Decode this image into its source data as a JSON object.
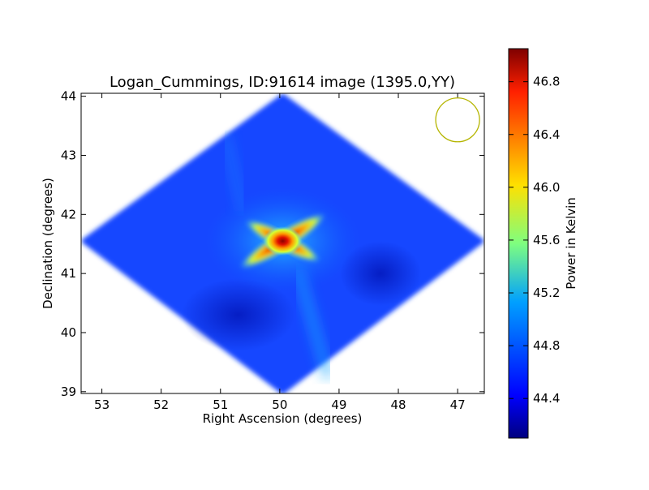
{
  "chart_data": {
    "type": "heatmap",
    "title": "Logan_Cummings, ID:91614 image (1395.0,YY)",
    "xlabel": "Right Ascension (degrees)",
    "ylabel": "Declination (degrees)",
    "xlim": [
      53.35,
      46.55
    ],
    "ylim": [
      38.97,
      44.05
    ],
    "x_ticks": [
      53,
      52,
      51,
      50,
      49,
      48,
      47
    ],
    "y_ticks": [
      39,
      40,
      41,
      42,
      43,
      44
    ],
    "x_tick_labels": [
      "53",
      "52",
      "51",
      "50",
      "49",
      "48",
      "47"
    ],
    "y_tick_labels": [
      "39",
      "40",
      "41",
      "42",
      "43",
      "44"
    ],
    "region": {
      "shape": "diamond",
      "vertices": [
        [
          49.95,
          44.0
        ],
        [
          53.3,
          41.55
        ],
        [
          49.95,
          39.0
        ],
        [
          46.6,
          41.55
        ]
      ]
    },
    "hotspot": {
      "ra": 49.95,
      "dec": 41.55,
      "value": 46.95
    },
    "background_value": 44.55,
    "beam": {
      "ra": 47.0,
      "dec": 43.6,
      "color": "#b5b500"
    },
    "colorbar": {
      "label": "Power in Kelvin",
      "range": [
        44.1,
        47.05
      ],
      "ticks": [
        44.4,
        44.8,
        45.2,
        45.6,
        46.0,
        46.4,
        46.8
      ],
      "tick_labels": [
        "44.4",
        "44.8",
        "45.2",
        "45.6",
        "46.0",
        "46.4",
        "46.8"
      ],
      "colormap": "jet"
    }
  }
}
